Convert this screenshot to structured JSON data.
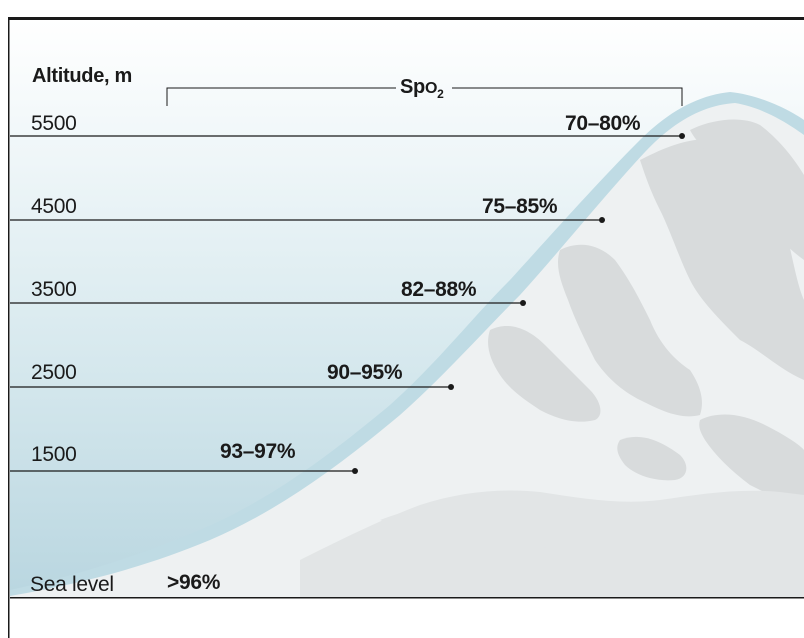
{
  "header": {
    "axis_label": "Altitude, m",
    "spo2_label_main": "Sp",
    "spo2_label_o": "O",
    "spo2_label_sub": "2"
  },
  "levels": [
    {
      "altitude": "5500",
      "spo2": "70–80%"
    },
    {
      "altitude": "4500",
      "spo2": "75–85%"
    },
    {
      "altitude": "3500",
      "spo2": "82–88%"
    },
    {
      "altitude": "2500",
      "spo2": "90–95%"
    },
    {
      "altitude": "1500",
      "spo2": "93–97%"
    },
    {
      "altitude": "Sea level",
      "spo2": ">96%"
    }
  ],
  "colors": {
    "sky_top": "#ffffff",
    "sky_bottom": "#c8e0e8",
    "mountain_light": "#eef1f2",
    "mountain_dark": "#d7dadb",
    "line": "#1a1a1a"
  }
}
